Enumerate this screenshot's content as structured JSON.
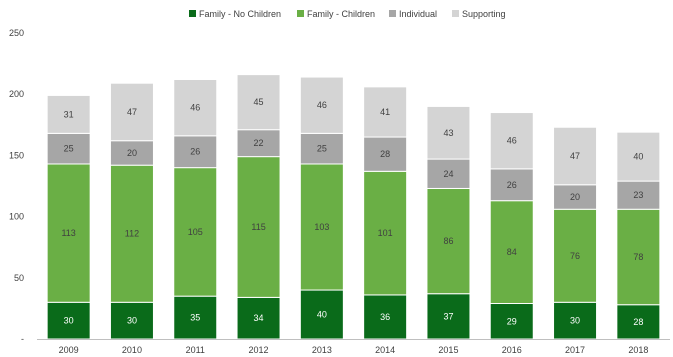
{
  "chart_data": {
    "type": "bar",
    "stacked": true,
    "categories": [
      "2009",
      "2010",
      "2011",
      "2012",
      "2013",
      "2014",
      "2015",
      "2016",
      "2017",
      "2018"
    ],
    "series": [
      {
        "name": "Family - No Children",
        "color": "#0a6b1a",
        "label_color": "#ffffff",
        "values": [
          30,
          30,
          35,
          34,
          40,
          36,
          37,
          29,
          30,
          28
        ]
      },
      {
        "name": "Family - Children",
        "color": "#6aaf45",
        "label_color": "#404040",
        "values": [
          113,
          112,
          105,
          115,
          103,
          101,
          86,
          84,
          76,
          78
        ]
      },
      {
        "name": "Individual",
        "color": "#a6a6a6",
        "label_color": "#404040",
        "values": [
          25,
          20,
          26,
          22,
          25,
          28,
          24,
          26,
          20,
          23
        ]
      },
      {
        "name": "Supporting",
        "color": "#d4d4d4",
        "label_color": "#404040",
        "values": [
          31,
          47,
          46,
          45,
          46,
          41,
          43,
          46,
          47,
          40
        ]
      }
    ],
    "y_ticks": [
      "-",
      "50",
      "100",
      "150",
      "200",
      "250"
    ],
    "ylim": [
      0,
      250
    ],
    "grid": false,
    "legend_position": "top"
  }
}
